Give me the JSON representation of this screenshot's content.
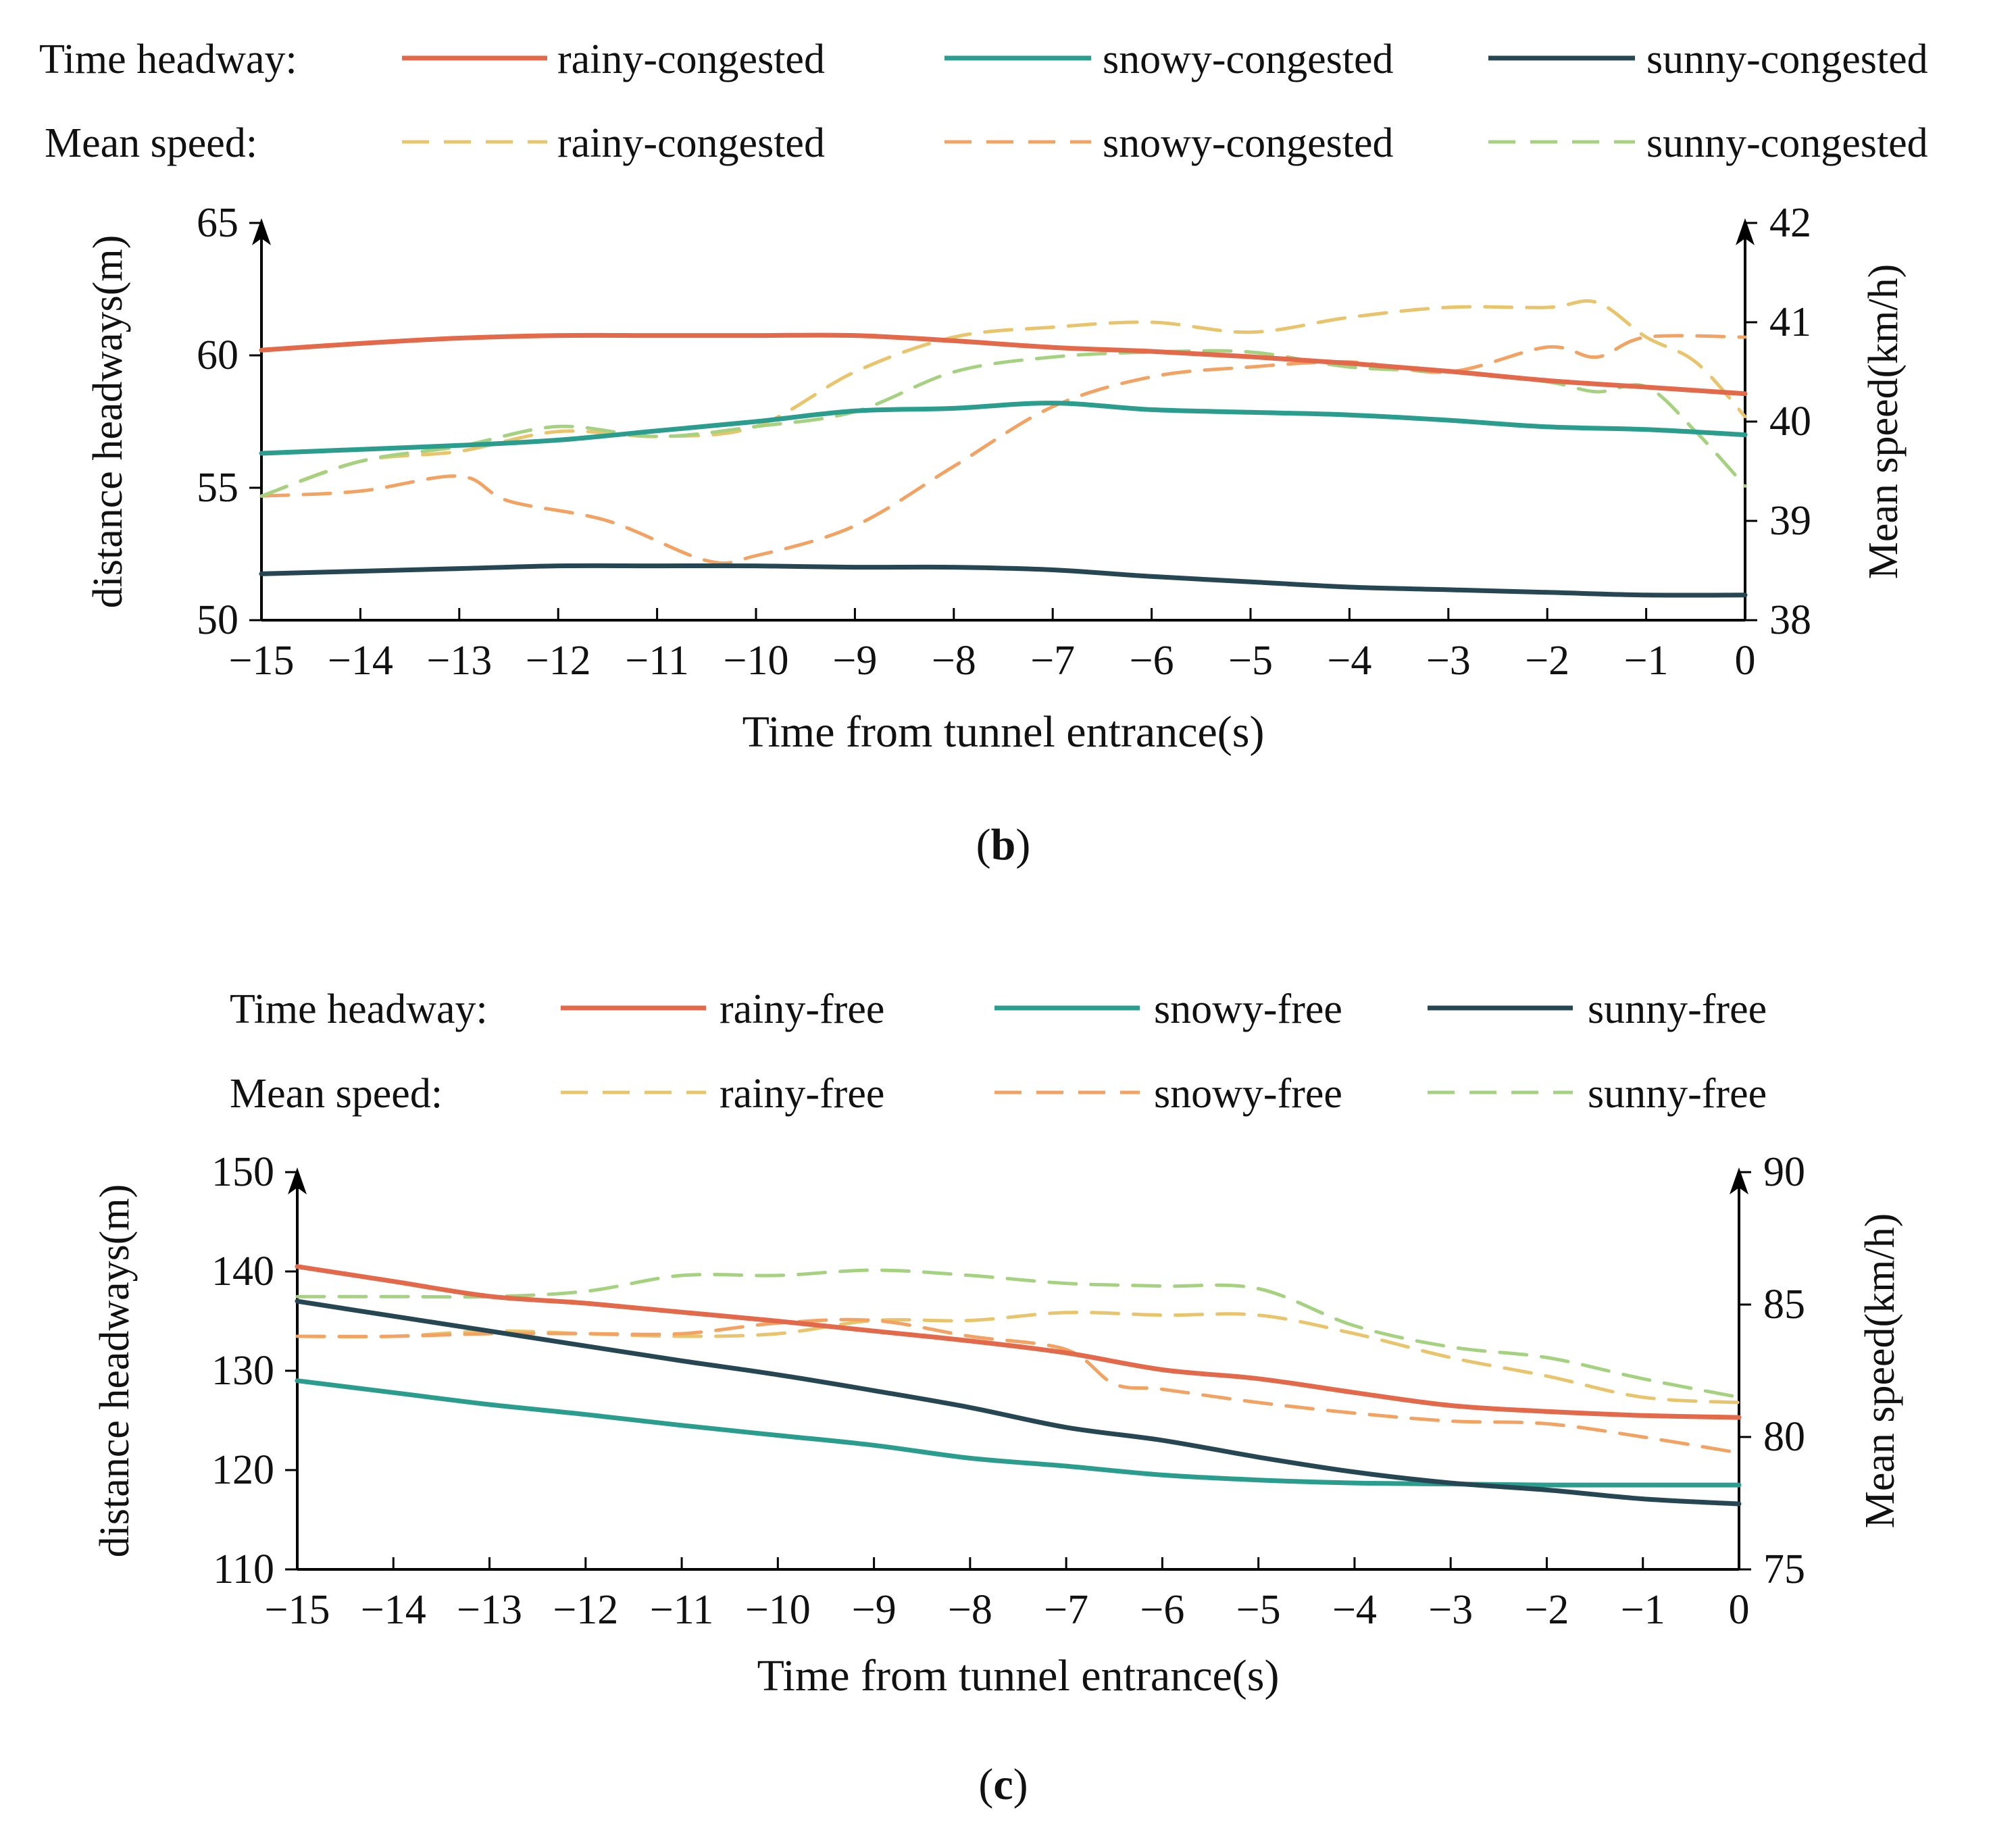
{
  "chart_data": [
    {
      "type": "line",
      "panel_label": "b",
      "xlabel": "Time from tunnel entrance(s)",
      "ylabel_left": "distance headways(m)",
      "ylabel_right": "Mean speed(km/h)",
      "xlim": [
        -15,
        0
      ],
      "ylim_left": [
        50,
        65
      ],
      "ylim_right": [
        38,
        42
      ],
      "x_ticks": [
        "−15",
        "−14",
        "−13",
        "−12",
        "−11",
        "−10",
        "−9",
        "−8",
        "−7",
        "−6",
        "−5",
        "−4",
        "−3",
        "−2",
        "−1",
        "0"
      ],
      "y_ticks_left": [
        "50",
        "55",
        "60",
        "65"
      ],
      "y_ticks_right": [
        "38",
        "39",
        "40",
        "41",
        "42"
      ],
      "legend": {
        "row1_title": "Time headway:",
        "row2_title": "Mean speed:",
        "labels": [
          "rainy-congested",
          "snowy-congested",
          "sunny-congested"
        ]
      },
      "series": [
        {
          "name": "rainy-congested",
          "group": "Time headway",
          "axis": "left",
          "color": "#e4694a",
          "dash": false,
          "x": [
            -15,
            -14,
            -13,
            -12,
            -11,
            -10,
            -9,
            -8,
            -7,
            -6,
            -5,
            -4,
            -3,
            -2,
            -1,
            0
          ],
          "values": [
            60.2,
            60.45,
            60.65,
            60.75,
            60.75,
            60.75,
            60.75,
            60.55,
            60.3,
            60.15,
            59.95,
            59.7,
            59.4,
            59.05,
            58.8,
            58.55
          ]
        },
        {
          "name": "snowy-congested",
          "group": "Time headway",
          "axis": "left",
          "color": "#2a9d8f",
          "dash": false,
          "x": [
            -15,
            -14,
            -13,
            -12,
            -11,
            -10,
            -9,
            -8,
            -7,
            -6,
            -5,
            -4,
            -3,
            -2,
            -1,
            0
          ],
          "values": [
            56.3,
            56.45,
            56.6,
            56.8,
            57.15,
            57.5,
            57.9,
            58.0,
            58.2,
            57.95,
            57.85,
            57.75,
            57.55,
            57.3,
            57.2,
            57.0
          ]
        },
        {
          "name": "sunny-congested",
          "group": "Time headway",
          "axis": "left",
          "color": "#264653",
          "dash": false,
          "x": [
            -15,
            -14,
            -13,
            -12,
            -11,
            -10,
            -9,
            -8,
            -7,
            -6,
            -5,
            -4,
            -3,
            -2,
            -1,
            0
          ],
          "values": [
            51.75,
            51.85,
            51.95,
            52.05,
            52.05,
            52.05,
            52.0,
            52.0,
            51.9,
            51.65,
            51.45,
            51.25,
            51.15,
            51.05,
            50.95,
            50.95
          ]
        },
        {
          "name": "rainy-congested",
          "group": "Mean speed",
          "axis": "right",
          "color": "#e9c46a",
          "dash": true,
          "x": [
            -15,
            -14,
            -13,
            -12,
            -11,
            -10,
            -9,
            -8,
            -7,
            -6,
            -5,
            -4,
            -3,
            -2,
            -1.5,
            -1,
            -0.5,
            0
          ],
          "values": [
            39.25,
            39.6,
            39.7,
            39.9,
            39.85,
            39.95,
            40.5,
            40.85,
            40.95,
            41.0,
            40.9,
            41.05,
            41.15,
            41.15,
            41.2,
            40.85,
            40.6,
            40.05
          ]
        },
        {
          "name": "snowy-congested",
          "group": "Mean speed",
          "axis": "right",
          "color": "#f4a261",
          "dash": true,
          "x": [
            -15,
            -14,
            -13,
            -12.5,
            -11.5,
            -10.5,
            -10,
            -9,
            -8,
            -7,
            -6,
            -5,
            -4,
            -3,
            -2,
            -1.5,
            -1,
            0
          ],
          "values": [
            39.25,
            39.3,
            39.45,
            39.2,
            39.0,
            38.6,
            38.65,
            38.95,
            39.55,
            40.15,
            40.45,
            40.55,
            40.6,
            40.5,
            40.75,
            40.65,
            40.85,
            40.85
          ]
        },
        {
          "name": "sunny-congested",
          "group": "Mean speed",
          "axis": "right",
          "color": "#a5d27f",
          "dash": true,
          "x": [
            -15,
            -14,
            -13,
            -12,
            -11,
            -10,
            -9,
            -8,
            -7,
            -6,
            -5,
            -4,
            -3,
            -2,
            -1.5,
            -1,
            -0.5,
            0
          ],
          "values": [
            39.25,
            39.6,
            39.75,
            39.95,
            39.85,
            39.95,
            40.1,
            40.5,
            40.65,
            40.7,
            40.7,
            40.55,
            40.5,
            40.4,
            40.3,
            40.35,
            39.9,
            39.35
          ]
        }
      ]
    },
    {
      "type": "line",
      "panel_label": "c",
      "xlabel": "Time from tunnel entrance(s)",
      "ylabel_left": "distance headways(m)",
      "ylabel_right": "Mean speed(km/h)",
      "xlim": [
        -15,
        0
      ],
      "ylim_left": [
        110,
        150
      ],
      "ylim_right": [
        75,
        90
      ],
      "x_ticks": [
        "−15",
        "−14",
        "−13",
        "−12",
        "−11",
        "−10",
        "−9",
        "−8",
        "−7",
        "−6",
        "−5",
        "−4",
        "−3",
        "−2",
        "−1",
        "0"
      ],
      "y_ticks_left": [
        "110",
        "120",
        "130",
        "140",
        "150"
      ],
      "y_ticks_right": [
        "75",
        "80",
        "85",
        "90"
      ],
      "legend": {
        "row1_title": "Time headway:",
        "row2_title": "Mean speed:",
        "labels": [
          "rainy-free",
          "snowy-free",
          "sunny-free"
        ]
      },
      "series": [
        {
          "name": "rainy-free",
          "group": "Time headway",
          "axis": "left",
          "color": "#e4694a",
          "dash": false,
          "x": [
            -15,
            -14,
            -13,
            -12,
            -11,
            -10,
            -9,
            -8,
            -7,
            -6,
            -5,
            -4,
            -3,
            -2,
            -1,
            0
          ],
          "values": [
            140.5,
            139.0,
            137.5,
            136.8,
            135.9,
            135.0,
            134.0,
            133.0,
            131.8,
            130.1,
            129.2,
            127.8,
            126.5,
            125.9,
            125.5,
            125.3
          ]
        },
        {
          "name": "snowy-free",
          "group": "Time headway",
          "axis": "left",
          "color": "#2a9d8f",
          "dash": false,
          "x": [
            -15,
            -14,
            -13,
            -12,
            -11,
            -10,
            -9,
            -8,
            -7,
            -6,
            -5,
            -4,
            -3,
            -2,
            -1,
            0
          ],
          "values": [
            129.0,
            127.8,
            126.6,
            125.6,
            124.5,
            123.5,
            122.5,
            121.2,
            120.4,
            119.5,
            119.0,
            118.7,
            118.6,
            118.5,
            118.5,
            118.5
          ]
        },
        {
          "name": "sunny-free",
          "group": "Time headway",
          "axis": "left",
          "color": "#264653",
          "dash": false,
          "x": [
            -15,
            -14,
            -13,
            -12,
            -11,
            -10,
            -9,
            -8,
            -7,
            -6,
            -5,
            -4,
            -3,
            -2,
            -1,
            0
          ],
          "values": [
            137.0,
            135.5,
            134.0,
            132.5,
            131.0,
            129.6,
            128.0,
            126.3,
            124.3,
            123.0,
            121.3,
            119.8,
            118.7,
            118.0,
            117.1,
            116.6
          ]
        },
        {
          "name": "rainy-free",
          "group": "Mean speed",
          "axis": "right",
          "color": "#e9c46a",
          "dash": true,
          "x": [
            -15,
            -14,
            -13,
            -12,
            -11,
            -10,
            -9,
            -8,
            -7,
            -6,
            -5,
            -4,
            -3,
            -2,
            -1,
            0
          ],
          "values": [
            83.8,
            83.8,
            84.0,
            83.9,
            83.8,
            83.9,
            84.4,
            84.4,
            84.7,
            84.6,
            84.6,
            83.9,
            83.0,
            82.3,
            81.5,
            81.3
          ]
        },
        {
          "name": "snowy-free",
          "group": "Mean speed",
          "axis": "right",
          "color": "#f4a261",
          "dash": true,
          "x": [
            -15,
            -14,
            -13,
            -12,
            -11,
            -10,
            -9,
            -8,
            -7,
            -6.5,
            -6,
            -5,
            -4,
            -3,
            -2,
            -1,
            0
          ],
          "values": [
            83.8,
            83.8,
            83.9,
            83.9,
            83.9,
            84.3,
            84.4,
            83.8,
            83.3,
            82.0,
            81.8,
            81.3,
            80.9,
            80.6,
            80.5,
            80.0,
            79.4
          ]
        },
        {
          "name": "sunny-free",
          "group": "Mean speed",
          "axis": "right",
          "color": "#a5d27f",
          "dash": true,
          "x": [
            -15,
            -14,
            -13,
            -12,
            -11,
            -10,
            -9,
            -8,
            -7,
            -6,
            -5,
            -4,
            -3,
            -2,
            -1,
            0
          ],
          "values": [
            85.3,
            85.3,
            85.3,
            85.5,
            86.1,
            86.1,
            86.3,
            86.1,
            85.8,
            85.7,
            85.6,
            84.2,
            83.4,
            83.0,
            82.2,
            81.5
          ]
        }
      ]
    }
  ]
}
